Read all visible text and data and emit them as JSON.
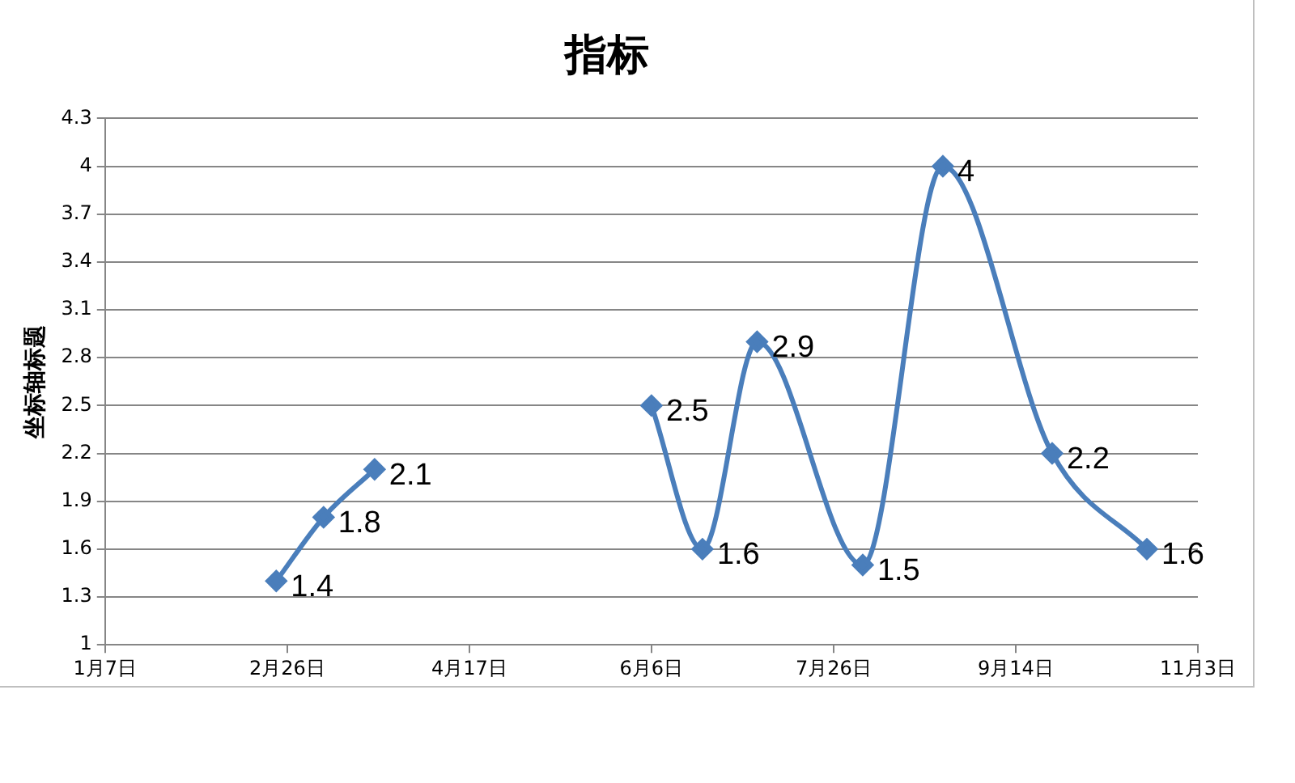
{
  "chart_data": {
    "type": "line",
    "title": "指标",
    "ylabel": "坐标轴标题",
    "x": [
      "--02-23",
      "--03-08",
      "--03-22",
      "--04-05",
      "--06-06",
      "--06-20",
      "--07-05",
      "--08-03",
      "--08-25",
      "--09-24",
      "--10-20"
    ],
    "series": [
      {
        "color": "#4a7ebb",
        "values": [
          1.4,
          1.8,
          2.1,
          null,
          2.5,
          1.6,
          2.9,
          1.5,
          4,
          2.2,
          1.6
        ]
      }
    ],
    "xlim": [
      "--01-07",
      "--11-03"
    ],
    "xticks": [
      {
        "value": "--01-07",
        "label": "1月7日"
      },
      {
        "value": "--02-26",
        "label": "2月26日"
      },
      {
        "value": "--04-17",
        "label": "4月17日"
      },
      {
        "value": "--06-06",
        "label": "6月6日"
      },
      {
        "value": "--07-26",
        "label": "7月26日"
      },
      {
        "value": "--09-14",
        "label": "9月14日"
      },
      {
        "value": "--11-03",
        "label": "11月3日"
      }
    ],
    "ylim": [
      1,
      4.3
    ],
    "yticks": [
      1,
      1.3,
      1.6,
      1.9,
      2.2,
      2.5,
      2.8,
      3.1,
      3.4,
      3.7,
      4,
      4.3
    ],
    "grid": "y",
    "legend": false,
    "marker": "diamond",
    "line_style": "solid",
    "data_labels": true
  }
}
